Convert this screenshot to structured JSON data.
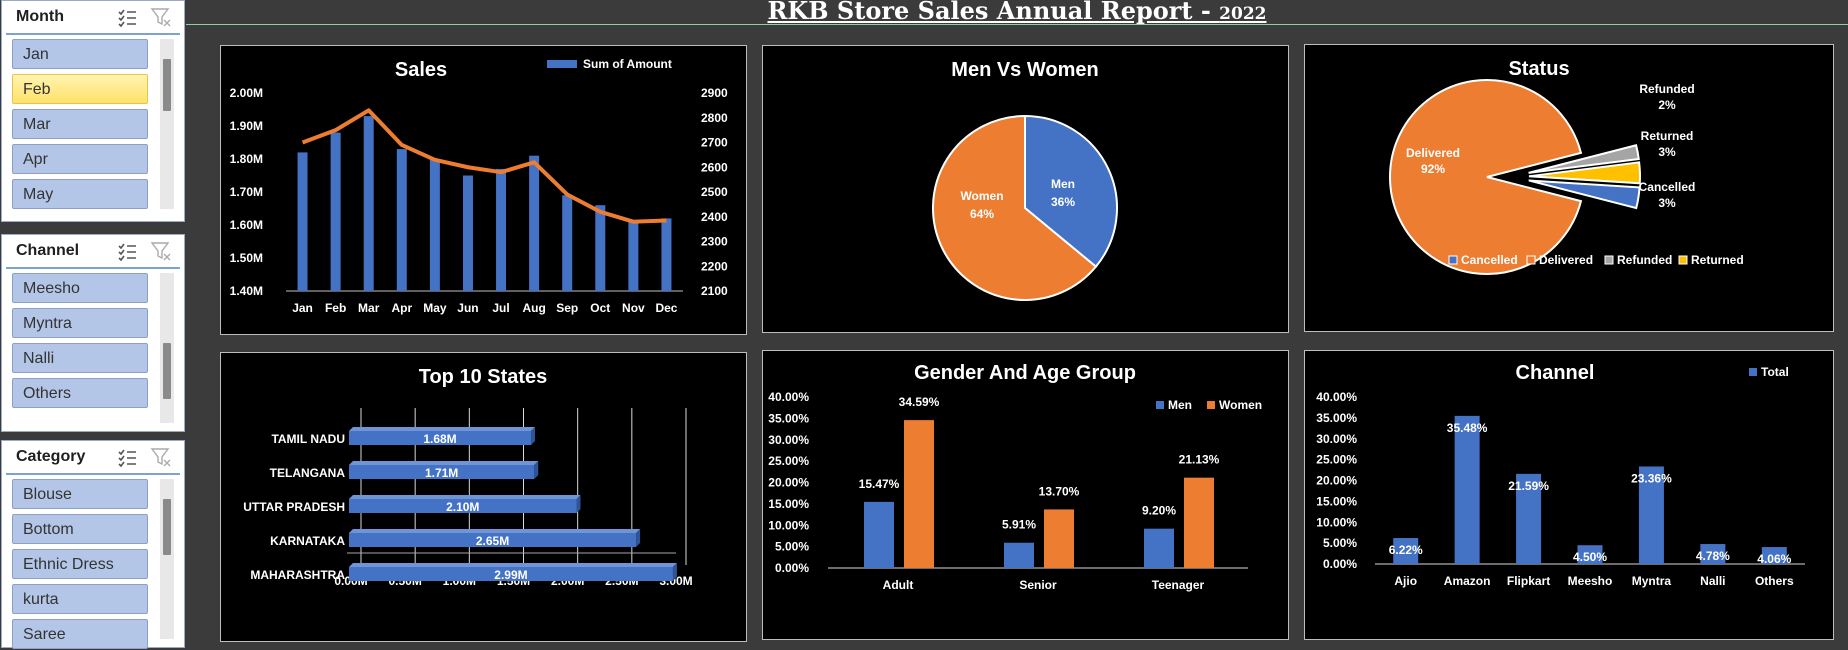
{
  "report": {
    "title": "RKB Store Sales Annual Report - ",
    "year": "2022"
  },
  "slicers": {
    "month": {
      "title": "Month",
      "items": [
        "Jan",
        "Feb",
        "Mar",
        "Apr",
        "May"
      ],
      "selected": "Feb"
    },
    "channel": {
      "title": "Channel",
      "items": [
        "Meesho",
        "Myntra",
        "Nalli",
        "Others"
      ]
    },
    "category": {
      "title": "Category",
      "items": [
        "Blouse",
        "Bottom",
        "Ethnic Dress",
        "kurta",
        "Saree"
      ]
    }
  },
  "icons": {
    "multi_select": "multi-select-icon",
    "clear_filter": "clear-filter-icon"
  },
  "colors": {
    "blue": "#4472c4",
    "orange": "#ed7d31",
    "gray": "#a5a5a5",
    "yellow": "#ffc000"
  },
  "chart_data": [
    {
      "id": "sales",
      "type": "bar",
      "title": "Sales",
      "categories": [
        "Jan",
        "Feb",
        "Mar",
        "Apr",
        "May",
        "Jun",
        "Jul",
        "Aug",
        "Sep",
        "Oct",
        "Nov",
        "Dec"
      ],
      "series": [
        {
          "name": "Sum of Amount",
          "values": [
            1.82,
            1.88,
            1.93,
            1.83,
            1.8,
            1.75,
            1.77,
            1.81,
            1.69,
            1.66,
            1.61,
            1.62
          ]
        },
        {
          "type": "line",
          "values": [
            2700,
            2750,
            2830,
            2690,
            2630,
            2600,
            2580,
            2620,
            2490,
            2420,
            2380,
            2385
          ]
        }
      ],
      "y_left_ticks": [
        "1.40M",
        "1.50M",
        "1.60M",
        "1.70M",
        "1.80M",
        "1.90M",
        "2.00M"
      ],
      "y_right_ticks": [
        "2100",
        "2200",
        "2300",
        "2400",
        "2500",
        "2600",
        "2700",
        "2800",
        "2900"
      ],
      "ylim_left": [
        1.4,
        2.0
      ],
      "ylim_right": [
        2100,
        2900
      ],
      "legend": "top-right"
    },
    {
      "id": "men_vs_women",
      "type": "pie",
      "title": "Men Vs Women",
      "slices": [
        {
          "label": "Men",
          "pct_label": "36%",
          "value": 36
        },
        {
          "label": "Women",
          "pct_label": "64%",
          "value": 64
        }
      ]
    },
    {
      "id": "status",
      "type": "pie",
      "title": "Status",
      "slices": [
        {
          "label": "Delivered",
          "pct_label": "92%",
          "value": 92
        },
        {
          "label": "Refunded",
          "pct_label": "2%",
          "value": 2
        },
        {
          "label": "Returned",
          "pct_label": "3%",
          "value": 3
        },
        {
          "label": "Cancelled",
          "pct_label": "3%",
          "value": 3
        }
      ],
      "legend_items": [
        "Cancelled",
        "Delivered",
        "Refunded",
        "Returned"
      ],
      "legend": "bottom"
    },
    {
      "id": "top_states",
      "type": "bar",
      "orientation": "horizontal",
      "title": "Top 10 States",
      "categories": [
        "TAMIL NADU",
        "TELANGANA",
        "UTTAR PRADESH",
        "KARNATAKA",
        "MAHARASHTRA"
      ],
      "values": [
        1.68,
        1.71,
        2.1,
        2.65,
        2.99
      ],
      "value_labels": [
        "1.68M",
        "1.71M",
        "2.10M",
        "2.65M",
        "2.99M"
      ],
      "x_ticks": [
        "0.00M",
        "0.50M",
        "1.00M",
        "1.50M",
        "2.00M",
        "2.50M",
        "3.00M"
      ],
      "xlim": [
        0,
        3.0
      ]
    },
    {
      "id": "gender_age",
      "type": "bar",
      "title": "Gender And Age Group",
      "categories": [
        "Adult",
        "Senior",
        "Teenager"
      ],
      "series": [
        {
          "name": "Men",
          "values": [
            15.47,
            5.91,
            9.2
          ],
          "labels": [
            "15.47%",
            "5.91%",
            "9.20%"
          ]
        },
        {
          "name": "Women",
          "values": [
            34.59,
            13.7,
            21.13
          ],
          "labels": [
            "34.59%",
            "13.70%",
            "21.13%"
          ]
        }
      ],
      "y_ticks": [
        "0.00%",
        "5.00%",
        "10.00%",
        "15.00%",
        "20.00%",
        "25.00%",
        "30.00%",
        "35.00%",
        "40.00%"
      ],
      "ylim": [
        0,
        40
      ],
      "legend": "top-right"
    },
    {
      "id": "channel",
      "type": "bar",
      "title": "Channel",
      "categories": [
        "Ajio",
        "Amazon",
        "Flipkart",
        "Meesho",
        "Myntra",
        "Nalli",
        "Others"
      ],
      "series": [
        {
          "name": "Total",
          "values": [
            6.22,
            35.48,
            21.59,
            4.5,
            23.36,
            4.78,
            4.06
          ],
          "labels": [
            "6.22%",
            "35.48%",
            "21.59%",
            "4.50%",
            "23.36%",
            "4.78%",
            "4.06%"
          ]
        }
      ],
      "y_ticks": [
        "0.00%",
        "5.00%",
        "10.00%",
        "15.00%",
        "20.00%",
        "25.00%",
        "30.00%",
        "35.00%",
        "40.00%"
      ],
      "ylim": [
        0,
        40
      ],
      "legend": "top-right"
    }
  ]
}
